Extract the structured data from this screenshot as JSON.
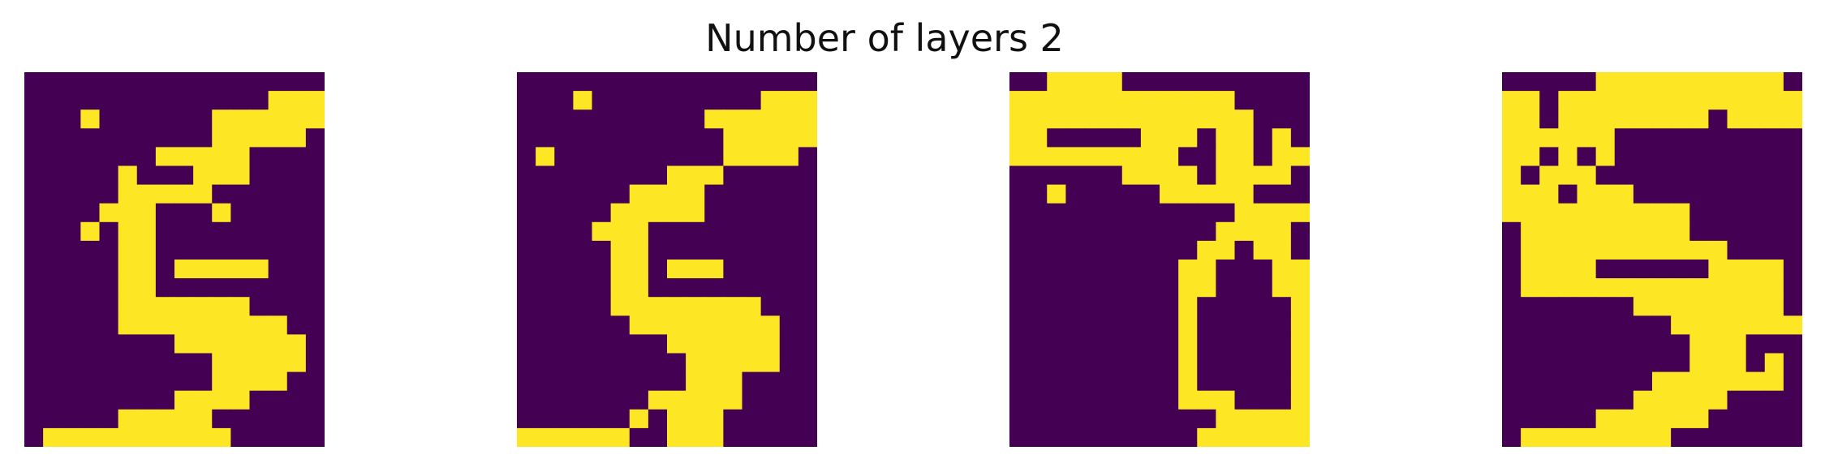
{
  "title": "Number of layers 2",
  "chart_data": {
    "type": "heatmap",
    "title": "Number of layers 2",
    "colormap": {
      "0": "#440154",
      "1": "#fde725"
    },
    "rows": 20,
    "cols": 16,
    "panels": [
      [
        "0000000000000000",
        "0000000000000111",
        "0001000000111111",
        "0000000000111110",
        "0000000111110000",
        "0000010001110000",
        "0000011111000000",
        "0000111000100000",
        "0001011000000000",
        "0000011000000000",
        "0000011011111000",
        "0000011000000000",
        "0000011111110000",
        "0000011111111100",
        "0000000011111110",
        "0000000000111110",
        "0000000000111100",
        "0000000011110000",
        "0000011111000000",
        "0111111111100000"
      ],
      [
        "0000000000000000",
        "0001000000000111",
        "0000000000111111",
        "0000000000011111",
        "0100000000011110",
        "0000000011100000",
        "0000001111000000",
        "0000011111000000",
        "0000111000000000",
        "0000011000000000",
        "0000011011100000",
        "0000011000000000",
        "0000011111111000",
        "0000001111111100",
        "0000000011111100",
        "0000000001111100",
        "0000000001110000",
        "0000000111110000",
        "0000001011100000",
        "1111110011100000"
      ],
      [
        "0011110000000000",
        "1111111111110000",
        "1111111111111000",
        "1100000111011010",
        "1111111110011011",
        "0000001111011110",
        "0010000011111000",
        "0000000000001111",
        "0000000000011110",
        "0000000000110110",
        "0000000001100011",
        "0000000001100011",
        "0000000001000001",
        "0000000001000001",
        "0000000001000001",
        "0000000001000001",
        "0000000001000001",
        "0000000001110001",
        "0000000000011111",
        "0000000000111111"
      ],
      [
        "0000011111111110",
        "1101111111111111",
        "1101111111101111",
        "1111110000000000",
        "1101010000000000",
        "1011100000000000",
        "1110111000000000",
        "1111111111000000",
        "0111111111000000",
        "0111111111110000",
        "0111100000011110",
        "0111111111111110",
        "0000000111111110",
        "0000000001111111",
        "0000000000111000",
        "0000000000111010",
        "0000000011111110",
        "0000000111110000",
        "0000011111100000",
        "0111111110000000"
      ]
    ]
  }
}
